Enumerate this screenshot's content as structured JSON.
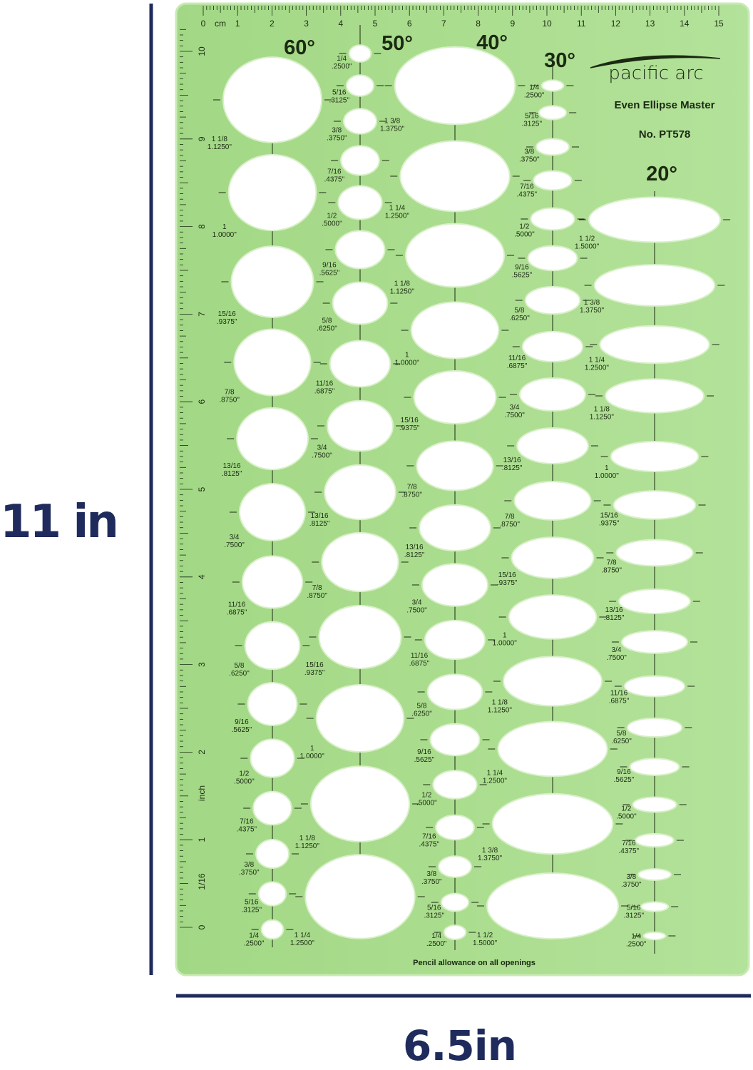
{
  "dimensions": {
    "height_label": "11 in",
    "width_label": "6.5in"
  },
  "colors": {
    "template_green": "#a9dc8c",
    "template_edge": "#c8eab4",
    "ink": "#1b2a12",
    "dimension_navy": "#1f2b5c",
    "opening": "#ffffff"
  },
  "ruler": {
    "cm_unit": "cm",
    "cm_labels": [
      "0",
      "1",
      "2",
      "3",
      "4",
      "5",
      "6",
      "7",
      "8",
      "9",
      "10",
      "11",
      "12",
      "13",
      "14",
      "15"
    ],
    "inch_labels": [
      "0",
      "1",
      "2",
      "3",
      "4",
      "5",
      "6",
      "7",
      "8",
      "9",
      "10"
    ],
    "inch_unit": "inch",
    "inch_division": "1/16"
  },
  "brand": {
    "logo_text": "pacific arc",
    "product_name": "Even Ellipse Master",
    "model_number": "No. PT578"
  },
  "footnote": "Pencil allowance on all openings",
  "columns": [
    {
      "angle": 60,
      "angle_label": "60°",
      "openings": [
        {
          "fraction": "1 1/8",
          "decimal": "1.1250\""
        },
        {
          "fraction": "1",
          "decimal": "1.0000\""
        },
        {
          "fraction": "15/16",
          "decimal": ".9375\""
        },
        {
          "fraction": "7/8",
          "decimal": ".8750\""
        },
        {
          "fraction": "13/16",
          "decimal": ".8125\""
        },
        {
          "fraction": "3/4",
          "decimal": ".7500\""
        },
        {
          "fraction": "11/16",
          "decimal": ".6875\""
        },
        {
          "fraction": "5/8",
          "decimal": ".6250\""
        },
        {
          "fraction": "9/16",
          "decimal": ".5625\""
        },
        {
          "fraction": "1/2",
          "decimal": ".5000\""
        },
        {
          "fraction": "7/16",
          "decimal": ".4375\""
        },
        {
          "fraction": "3/8",
          "decimal": ".3750\""
        },
        {
          "fraction": "5/16",
          "decimal": ".3125\""
        },
        {
          "fraction": "1/4",
          "decimal": ".2500\""
        }
      ]
    },
    {
      "angle": 50,
      "angle_label": "50°",
      "openings": [
        {
          "fraction": "1/4",
          "decimal": ".2500\""
        },
        {
          "fraction": "5/16",
          "decimal": ".3125\""
        },
        {
          "fraction": "3/8",
          "decimal": ".3750\""
        },
        {
          "fraction": "7/16",
          "decimal": ".4375\""
        },
        {
          "fraction": "1/2",
          "decimal": ".5000\""
        },
        {
          "fraction": "9/16",
          "decimal": ".5625\""
        },
        {
          "fraction": "5/8",
          "decimal": ".6250\""
        },
        {
          "fraction": "11/16",
          "decimal": ".6875\""
        },
        {
          "fraction": "3/4",
          "decimal": ".7500\""
        },
        {
          "fraction": "13/16",
          "decimal": ".8125\""
        },
        {
          "fraction": "7/8",
          "decimal": ".8750\""
        },
        {
          "fraction": "15/16",
          "decimal": ".9375\""
        },
        {
          "fraction": "1",
          "decimal": "1.0000\""
        },
        {
          "fraction": "1 1/8",
          "decimal": "1.1250\""
        },
        {
          "fraction": "1 1/4",
          "decimal": "1.2500\""
        }
      ]
    },
    {
      "angle": 40,
      "angle_label": "40°",
      "openings": [
        {
          "fraction": "1 3/8",
          "decimal": "1.3750\""
        },
        {
          "fraction": "1 1/4",
          "decimal": "1.2500\""
        },
        {
          "fraction": "1 1/8",
          "decimal": "1.1250\""
        },
        {
          "fraction": "1",
          "decimal": "1.0000\""
        },
        {
          "fraction": "15/16",
          "decimal": ".9375\""
        },
        {
          "fraction": "7/8",
          "decimal": ".8750\""
        },
        {
          "fraction": "13/16",
          "decimal": ".8125\""
        },
        {
          "fraction": "3/4",
          "decimal": ".7500\""
        },
        {
          "fraction": "11/16",
          "decimal": ".6875\""
        },
        {
          "fraction": "5/8",
          "decimal": ".6250\""
        },
        {
          "fraction": "9/16",
          "decimal": ".5625\""
        },
        {
          "fraction": "1/2",
          "decimal": ".5000\""
        },
        {
          "fraction": "7/16",
          "decimal": ".4375\""
        },
        {
          "fraction": "3/8",
          "decimal": ".3750\""
        },
        {
          "fraction": "5/16",
          "decimal": ".3125\""
        },
        {
          "fraction": "1/4",
          "decimal": ".2500\""
        }
      ]
    },
    {
      "angle": 30,
      "angle_label": "30°",
      "openings": [
        {
          "fraction": "1/4",
          "decimal": ".2500\""
        },
        {
          "fraction": "5/16",
          "decimal": ".3125\""
        },
        {
          "fraction": "3/8",
          "decimal": ".3750\""
        },
        {
          "fraction": "7/16",
          "decimal": ".4375\""
        },
        {
          "fraction": "1/2",
          "decimal": ".5000\""
        },
        {
          "fraction": "9/16",
          "decimal": ".5625\""
        },
        {
          "fraction": "5/8",
          "decimal": ".6250\""
        },
        {
          "fraction": "11/16",
          "decimal": ".6875\""
        },
        {
          "fraction": "3/4",
          "decimal": ".7500\""
        },
        {
          "fraction": "13/16",
          "decimal": ".8125\""
        },
        {
          "fraction": "7/8",
          "decimal": ".8750\""
        },
        {
          "fraction": "15/16",
          "decimal": ".9375\""
        },
        {
          "fraction": "1",
          "decimal": "1.0000\""
        },
        {
          "fraction": "1 1/8",
          "decimal": "1.1250\""
        },
        {
          "fraction": "1 1/4",
          "decimal": "1.2500\""
        },
        {
          "fraction": "1 3/8",
          "decimal": "1.3750\""
        },
        {
          "fraction": "1 1/2",
          "decimal": "1.5000\""
        }
      ]
    },
    {
      "angle": 20,
      "angle_label": "20°",
      "openings": [
        {
          "fraction": "1 1/2",
          "decimal": "1.5000\""
        },
        {
          "fraction": "1 3/8",
          "decimal": "1.3750\""
        },
        {
          "fraction": "1 1/4",
          "decimal": "1.2500\""
        },
        {
          "fraction": "1 1/8",
          "decimal": "1.1250\""
        },
        {
          "fraction": "1",
          "decimal": "1.0000\""
        },
        {
          "fraction": "15/16",
          "decimal": ".9375\""
        },
        {
          "fraction": "7/8",
          "decimal": ".8750\""
        },
        {
          "fraction": "13/16",
          "decimal": ".8125\""
        },
        {
          "fraction": "3/4",
          "decimal": ".7500\""
        },
        {
          "fraction": "11/16",
          "decimal": ".6875\""
        },
        {
          "fraction": "5/8",
          "decimal": ".6250\""
        },
        {
          "fraction": "9/16",
          "decimal": ".5625\""
        },
        {
          "fraction": "1/2",
          "decimal": ".5000\""
        },
        {
          "fraction": "7/16",
          "decimal": ".4375\""
        },
        {
          "fraction": "3/8",
          "decimal": ".3750\""
        },
        {
          "fraction": "5/16",
          "decimal": ".3125\""
        },
        {
          "fraction": "1/4",
          "decimal": ".2500\""
        }
      ]
    }
  ]
}
